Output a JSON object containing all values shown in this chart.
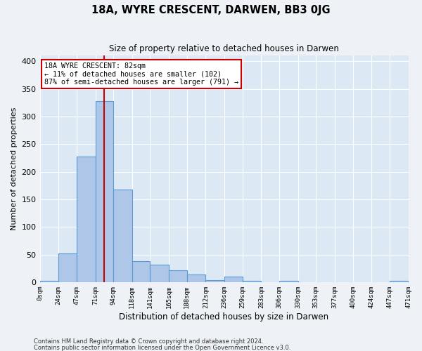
{
  "title1": "18A, WYRE CRESCENT, DARWEN, BB3 0JG",
  "title2": "Size of property relative to detached houses in Darwen",
  "xlabel": "Distribution of detached houses by size in Darwen",
  "ylabel": "Number of detached properties",
  "footer1": "Contains HM Land Registry data © Crown copyright and database right 2024.",
  "footer2": "Contains public sector information licensed under the Open Government Licence v3.0.",
  "bin_edges": [
    0,
    24,
    47,
    71,
    94,
    118,
    141,
    165,
    188,
    212,
    236,
    259,
    283,
    306,
    330,
    353,
    377,
    400,
    424,
    447,
    471
  ],
  "bar_heights": [
    2,
    52,
    228,
    328,
    168,
    38,
    32,
    22,
    14,
    4,
    10,
    2,
    0,
    2,
    0,
    0,
    0,
    0,
    0,
    2
  ],
  "bar_color": "#aec6e8",
  "bar_edge_color": "#5b9bd5",
  "property_size": 82,
  "annotation_text": "18A WYRE CRESCENT: 82sqm\n← 11% of detached houses are smaller (102)\n87% of semi-detached houses are larger (791) →",
  "annotation_box_color": "#ffffff",
  "annotation_border_color": "#cc0000",
  "vline_color": "#cc0000",
  "bg_color": "#dce9f5",
  "fig_bg_color": "#eef2f7",
  "ylim": [
    0,
    410
  ],
  "yticks": [
    0,
    50,
    100,
    150,
    200,
    250,
    300,
    350,
    400
  ]
}
